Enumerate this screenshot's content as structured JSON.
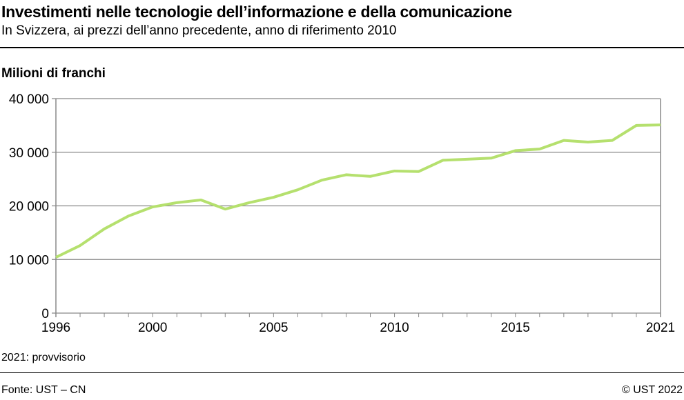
{
  "header": {
    "title": "Investimenti nelle tecnologie dell’informazione e della comunicazione",
    "subtitle": "In Svizzera, ai prezzi dell’anno precedente, anno di riferimento 2010"
  },
  "footer": {
    "note": "2021: provvisorio",
    "source": "Fonte: UST – CN",
    "copyright": "© UST 2022"
  },
  "chart_data": {
    "type": "line",
    "title": "Investimenti nelle tecnologie dell’informazione e della comunicazione",
    "ylabel": "Milioni di franchi",
    "xlim": [
      1996,
      2021
    ],
    "ylim": [
      0,
      40000
    ],
    "x_ticks": [
      "1996",
      "2000",
      "2005",
      "2010",
      "2015",
      "2021"
    ],
    "y_ticks": [
      "0",
      "10 000",
      "20 000",
      "30 000",
      "40 000"
    ],
    "grid": true,
    "color": "#b5e06e",
    "x": [
      1996,
      1997,
      1998,
      1999,
      2000,
      2001,
      2002,
      2003,
      2004,
      2005,
      2006,
      2007,
      2008,
      2009,
      2010,
      2011,
      2012,
      2013,
      2014,
      2015,
      2016,
      2017,
      2018,
      2019,
      2020,
      2021
    ],
    "values": [
      10400,
      12600,
      15700,
      18100,
      19800,
      20600,
      21100,
      19400,
      20600,
      21600,
      23000,
      24800,
      25800,
      25500,
      26500,
      26400,
      28500,
      28700,
      28900,
      30300,
      30600,
      32200,
      31900,
      32200,
      35000,
      35100
    ]
  }
}
